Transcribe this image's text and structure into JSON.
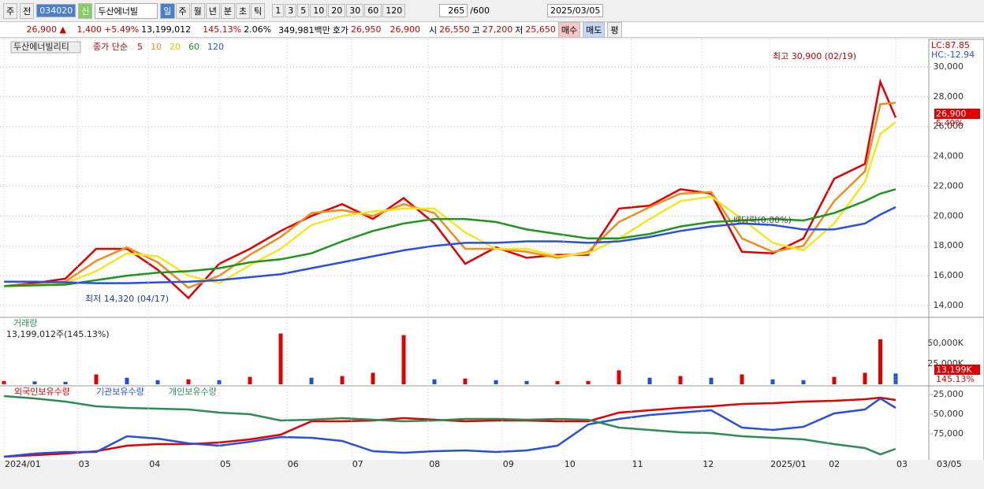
{
  "toolbar": {
    "market": "주",
    "prev": "전",
    "code": "034020",
    "badge": "신",
    "name": "두산에너빌",
    "periods": [
      "일",
      "주",
      "월",
      "년",
      "분",
      "초",
      "틱"
    ],
    "minutes": [
      "1",
      "3",
      "5",
      "10",
      "20",
      "30",
      "60",
      "120"
    ],
    "count": "265",
    "count_max": "/600",
    "date": "2025/03/05"
  },
  "info": {
    "price": "26,900 ▲",
    "change": "1,400",
    "rate": "+5.49%",
    "volume": "13,199,012",
    "volume_ratio": "145.13%",
    "turnover": "2.06%",
    "amount": "349,981백만",
    "quote_label": "호가",
    "ask": "26,950",
    "bid": "26,900",
    "open_label": "시",
    "open": "26,550",
    "high_label": "고",
    "high": "27,200",
    "low_label": "저",
    "low": "25,650",
    "buy": "매수",
    "sell": "매도",
    "avg": "평"
  },
  "chart_data": [
    {
      "type": "line",
      "title": "두산에너빌리티",
      "legend_title": "종가 단순",
      "right_top": "LC:87.85",
      "right_bottom": "HC:-12.94",
      "last_label": "26,900",
      "last_change": "5.49%",
      "annotations": [
        "최고 30,900 (02/19)",
        "최저 14,320 (04/17)",
        "배당락(0.00%)"
      ],
      "x": [
        0,
        10,
        20,
        30,
        40,
        50,
        60,
        70,
        80,
        90,
        100,
        110,
        120,
        130,
        140,
        150,
        160,
        170,
        180,
        190,
        200,
        210,
        220,
        230,
        240,
        250,
        260,
        270,
        280,
        285,
        290
      ],
      "xlim": [
        0,
        300
      ],
      "ylim": [
        13260,
        31740
      ],
      "yticks": [
        {
          "value": 14000,
          "label": "14,000"
        },
        {
          "value": 16000,
          "label": "16,000"
        },
        {
          "value": 18000,
          "label": "18,000"
        },
        {
          "value": 20000,
          "label": "20,000"
        },
        {
          "value": 22000,
          "label": "22,000"
        },
        {
          "value": 24000,
          "label": "24,000"
        },
        {
          "value": 26000,
          "label": "26,000"
        },
        {
          "value": 28000,
          "label": "28,000"
        },
        {
          "value": 30000,
          "label": "30,000"
        }
      ],
      "grid": true,
      "series": [
        {
          "name": "5",
          "color": "#e00000",
          "values": [
            15300,
            15500,
            15800,
            17800,
            17800,
            16400,
            14500,
            16800,
            17800,
            19000,
            20000,
            20800,
            19800,
            21200,
            19500,
            16800,
            17900,
            17200,
            17400,
            17400,
            20500,
            20700,
            21800,
            21500,
            17600,
            17500,
            18500,
            22500,
            23500,
            29000,
            26600
          ]
        },
        {
          "name": "10",
          "color": "#f08c1e",
          "values": [
            15300,
            15400,
            15600,
            17000,
            17900,
            16900,
            15200,
            16000,
            17400,
            18600,
            20200,
            20400,
            20000,
            20800,
            20200,
            17800,
            17800,
            17600,
            17200,
            17600,
            19600,
            20600,
            21500,
            21600,
            18500,
            17600,
            18000,
            21000,
            23000,
            27500,
            27600
          ]
        },
        {
          "name": "20",
          "color": "#f5e61e",
          "values": [
            15300,
            15350,
            15500,
            16300,
            17500,
            17300,
            16000,
            15500,
            16700,
            17800,
            19400,
            20000,
            20300,
            20500,
            20500,
            18900,
            17800,
            17800,
            17300,
            17500,
            18500,
            19800,
            21000,
            21300,
            19800,
            18200,
            17700,
            19500,
            22300,
            25500,
            26300
          ]
        },
        {
          "name": "60",
          "color": "#1e961e",
          "values": [
            15300,
            15350,
            15400,
            15700,
            16000,
            16200,
            16300,
            16500,
            16900,
            17100,
            17500,
            18300,
            19000,
            19500,
            19800,
            19800,
            19600,
            19100,
            18800,
            18500,
            18500,
            18800,
            19300,
            19600,
            19700,
            19800,
            19700,
            20200,
            21000,
            21500,
            21800
          ]
        },
        {
          "name": "120",
          "color": "#2850dc",
          "values": [
            15600,
            15600,
            15550,
            15500,
            15500,
            15550,
            15600,
            15700,
            15900,
            16100,
            16500,
            16900,
            17300,
            17700,
            18000,
            18200,
            18200,
            18300,
            18300,
            18200,
            18300,
            18600,
            19000,
            19300,
            19500,
            19400,
            19100,
            19100,
            19500,
            20100,
            20600
          ]
        }
      ]
    },
    {
      "type": "bar",
      "title": "거래량",
      "subtitle": "13,199,012주(145.13%)",
      "last_label": "13,199K",
      "last_ratio": "145.13%",
      "up_color": "#e00000",
      "down_color": "#1e50dc",
      "x": [
        0,
        10,
        20,
        30,
        40,
        50,
        60,
        70,
        80,
        90,
        100,
        110,
        120,
        130,
        140,
        150,
        160,
        170,
        180,
        190,
        200,
        210,
        220,
        230,
        240,
        250,
        260,
        270,
        280,
        285,
        290
      ],
      "xlim": [
        0,
        300
      ],
      "ylim": [
        0,
        75000
      ],
      "yticks": [
        {
          "value": 25000,
          "label": "25,000K"
        },
        {
          "value": 50000,
          "label": "50,000K"
        }
      ],
      "values": [
        4000,
        3500,
        3000,
        12000,
        8000,
        5000,
        6000,
        5000,
        9000,
        62000,
        8000,
        10000,
        14000,
        60000,
        6000,
        7000,
        5000,
        4000,
        4000,
        4000,
        17000,
        8000,
        10000,
        8000,
        12000,
        6000,
        5000,
        9000,
        14000,
        55000,
        13199
      ]
    },
    {
      "type": "line",
      "x": [
        0,
        10,
        20,
        30,
        40,
        50,
        60,
        70,
        80,
        90,
        100,
        110,
        120,
        130,
        140,
        150,
        160,
        170,
        180,
        190,
        200,
        210,
        220,
        230,
        240,
        250,
        260,
        270,
        280,
        285,
        290
      ],
      "xlim": [
        0,
        300
      ],
      "ylim": [
        -106000,
        -16000
      ],
      "yticks": [
        {
          "value": -25000,
          "label": "-25,000"
        },
        {
          "value": -50000,
          "label": "-50,000"
        },
        {
          "value": -75000,
          "label": "-75,000"
        }
      ],
      "xticks": [
        {
          "value": 0,
          "label": "2024/01"
        },
        {
          "value": 24,
          "label": "03"
        },
        {
          "value": 47,
          "label": "04"
        },
        {
          "value": 70,
          "label": "05"
        },
        {
          "value": 92,
          "label": "06"
        },
        {
          "value": 113,
          "label": "07"
        },
        {
          "value": 138,
          "label": "08"
        },
        {
          "value": 162,
          "label": "09"
        },
        {
          "value": 182,
          "label": "10"
        },
        {
          "value": 204,
          "label": "11"
        },
        {
          "value": 227,
          "label": "12"
        },
        {
          "value": 249,
          "label": "2025/01"
        },
        {
          "value": 268,
          "label": "02"
        },
        {
          "value": 290,
          "label": "03"
        }
      ],
      "x_end_label": "03/05",
      "series": [
        {
          "name": "외국인보유수량",
          "color": "#e00000",
          "values": [
            -104000,
            -102000,
            -100000,
            -97000,
            -90000,
            -88000,
            -88000,
            -86000,
            -82000,
            -76000,
            -59000,
            -59000,
            -58000,
            -55000,
            -57000,
            -59000,
            -58000,
            -58000,
            -59000,
            -59000,
            -48000,
            -45000,
            -42000,
            -40000,
            -37000,
            -36000,
            -34000,
            -33000,
            -31000,
            -29000,
            -32000
          ]
        },
        {
          "name": "기관보유수량",
          "color": "#2850dc",
          "values": [
            -104000,
            -100000,
            -98000,
            -98000,
            -78000,
            -81000,
            -87000,
            -90000,
            -85000,
            -79000,
            -80000,
            -84000,
            -97000,
            -99000,
            -97000,
            -96000,
            -98000,
            -96000,
            -90000,
            -63000,
            -56000,
            -51000,
            -48000,
            -45000,
            -67000,
            -70000,
            -66000,
            -49000,
            -44000,
            -30000,
            -42000
          ]
        },
        {
          "name": "개인보유수량",
          "color": "#2e8b57",
          "values": [
            -27000,
            -30000,
            -34000,
            -40000,
            -42000,
            -43000,
            -44000,
            -48000,
            -50000,
            -58000,
            -57000,
            -55000,
            -57000,
            -59000,
            -58000,
            -56000,
            -56000,
            -57000,
            -56000,
            -57000,
            -67000,
            -70000,
            -73000,
            -74000,
            -78000,
            -80000,
            -82000,
            -88000,
            -93000,
            -101000,
            -94000
          ]
        }
      ]
    }
  ]
}
